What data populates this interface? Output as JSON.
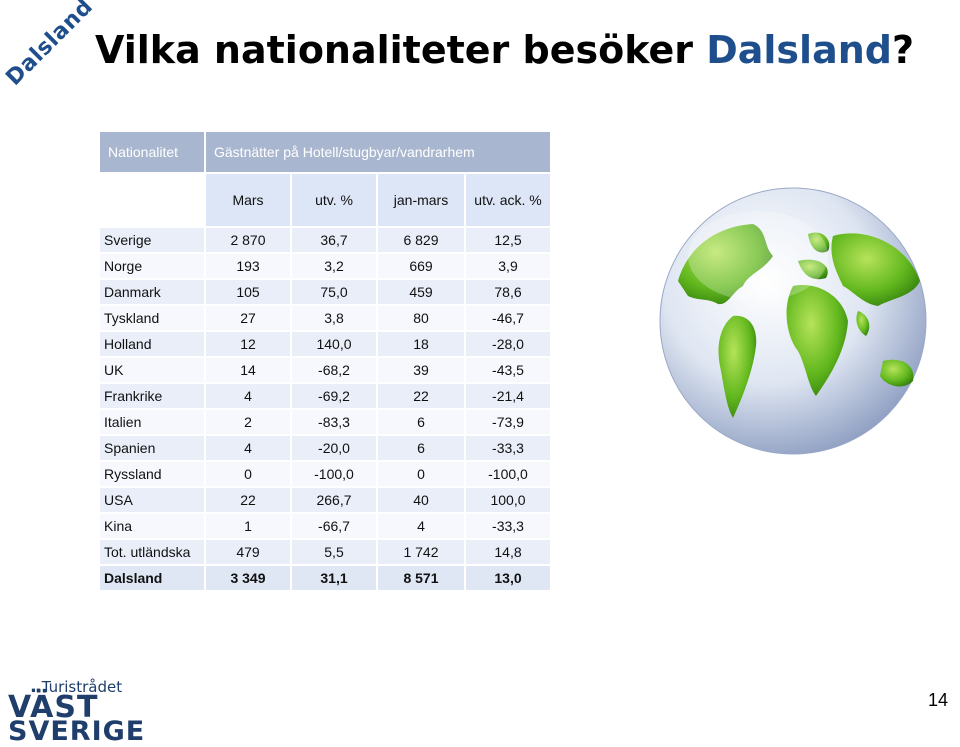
{
  "slide": {
    "corner_tag": "Dalsland",
    "title_prefix": "Vilka nationaliteter besöker ",
    "title_accent": "Dalsland",
    "title_suffix": "?",
    "page_number": "14"
  },
  "colors": {
    "accent": "#1f4e8c",
    "header_bg": "#a9b6cf",
    "row_bg": "#e9eef9",
    "row_alt_bg": "#f6f8fd"
  },
  "table": {
    "header_nationality": "Nationalitet",
    "header_group": "Gästnätter på Hotell/stugbyar/vandrarhem",
    "columns": [
      "Mars",
      "utv. %",
      "jan-mars",
      "utv. ack. %"
    ],
    "rows": [
      {
        "name": "Sverige",
        "mars": "2 870",
        "utv": "36,7",
        "janmars": "6 829",
        "utvack": "12,5"
      },
      {
        "name": "Norge",
        "mars": "193",
        "utv": "3,2",
        "janmars": "669",
        "utvack": "3,9"
      },
      {
        "name": "Danmark",
        "mars": "105",
        "utv": "75,0",
        "janmars": "459",
        "utvack": "78,6"
      },
      {
        "name": "Tyskland",
        "mars": "27",
        "utv": "3,8",
        "janmars": "80",
        "utvack": "-46,7"
      },
      {
        "name": "Holland",
        "mars": "12",
        "utv": "140,0",
        "janmars": "18",
        "utvack": "-28,0"
      },
      {
        "name": "UK",
        "mars": "14",
        "utv": "-68,2",
        "janmars": "39",
        "utvack": "-43,5"
      },
      {
        "name": "Frankrike",
        "mars": "4",
        "utv": "-69,2",
        "janmars": "22",
        "utvack": "-21,4"
      },
      {
        "name": "Italien",
        "mars": "2",
        "utv": "-83,3",
        "janmars": "6",
        "utvack": "-73,9"
      },
      {
        "name": "Spanien",
        "mars": "4",
        "utv": "-20,0",
        "janmars": "6",
        "utvack": "-33,3"
      },
      {
        "name": "Ryssland",
        "mars": "0",
        "utv": "-100,0",
        "janmars": "0",
        "utvack": "-100,0"
      },
      {
        "name": "USA",
        "mars": "22",
        "utv": "266,7",
        "janmars": "40",
        "utvack": "100,0"
      },
      {
        "name": "Kina",
        "mars": "1",
        "utv": "-66,7",
        "janmars": "4",
        "utvack": "-33,3"
      },
      {
        "name": "Tot. utländska",
        "mars": "479",
        "utv": "5,5",
        "janmars": "1 742",
        "utvack": "14,8"
      }
    ],
    "total": {
      "name": "Dalsland",
      "mars": "3 349",
      "utv": "31,1",
      "janmars": "8 571",
      "utvack": "13,0"
    }
  },
  "globe": {
    "icon": "globe-icon"
  },
  "logo": {
    "prefix": "Turistrådet",
    "line1": "VÄST",
    "line2": "SVERIGE"
  }
}
